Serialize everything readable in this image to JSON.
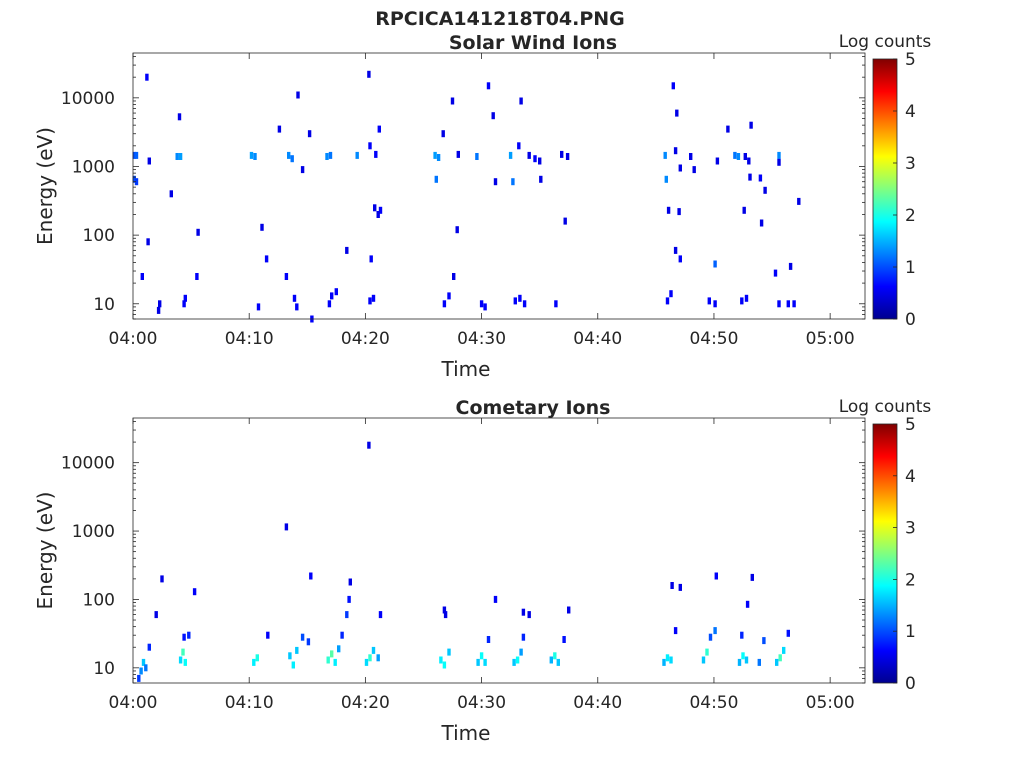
{
  "figure": {
    "title": "RPCICA141218T04.PNG"
  },
  "chart_data": [
    {
      "type": "heatmap",
      "title": "Solar Wind Ions",
      "xlabel": "Time",
      "ylabel": "Energy (eV)",
      "yscale": "log",
      "ylim": [
        6,
        45000
      ],
      "xlim": [
        "04:00",
        "05:03"
      ],
      "x_ticks": [
        "04:00",
        "04:10",
        "04:20",
        "04:30",
        "04:40",
        "04:50",
        "05:00"
      ],
      "y_ticks": [
        "10",
        "100",
        "1000",
        "10000"
      ],
      "colorbar": {
        "label": "Log counts",
        "range": [
          0,
          5
        ],
        "ticks": [
          "0",
          "1",
          "2",
          "3",
          "4",
          "5"
        ],
        "colormap": "jet"
      },
      "cells": [
        [
          0.1,
          1450,
          1.0
        ],
        [
          0.3,
          1450,
          1.1
        ],
        [
          0.1,
          650,
          1.0
        ],
        [
          0.3,
          600,
          0.9
        ],
        [
          1.2,
          20000,
          0.6
        ],
        [
          1.4,
          1200,
          0.5
        ],
        [
          0.8,
          25,
          0.6
        ],
        [
          1.3,
          80,
          0.5
        ],
        [
          2.2,
          8,
          0.5
        ],
        [
          2.3,
          10,
          0.5
        ],
        [
          3.8,
          1400,
          1.3
        ],
        [
          4.1,
          1400,
          1.4
        ],
        [
          4.0,
          5300,
          0.5
        ],
        [
          3.3,
          400,
          0.5
        ],
        [
          4.4,
          10,
          0.6
        ],
        [
          4.5,
          12,
          0.6
        ],
        [
          5.6,
          110,
          0.5
        ],
        [
          5.5,
          25,
          0.6
        ],
        [
          10.2,
          1450,
          1.4
        ],
        [
          10.5,
          1400,
          1.3
        ],
        [
          11.1,
          130,
          0.5
        ],
        [
          11.5,
          45,
          0.6
        ],
        [
          10.8,
          9,
          0.6
        ],
        [
          12.6,
          3500,
          0.5
        ],
        [
          13.4,
          1450,
          1.3
        ],
        [
          13.7,
          1300,
          1.2
        ],
        [
          14.2,
          11000,
          0.5
        ],
        [
          13.2,
          25,
          0.6
        ],
        [
          13.9,
          12,
          0.6
        ],
        [
          14.1,
          9,
          0.6
        ],
        [
          15.2,
          3000,
          0.5
        ],
        [
          14.6,
          900,
          0.5
        ],
        [
          15.4,
          6,
          0.6
        ],
        [
          16.7,
          1400,
          1.3
        ],
        [
          17.0,
          1450,
          1.2
        ],
        [
          16.9,
          10,
          0.6
        ],
        [
          17.1,
          13,
          0.6
        ],
        [
          17.5,
          15,
          0.6
        ],
        [
          18.4,
          60,
          0.5
        ],
        [
          19.3,
          1450,
          1.3
        ],
        [
          20.3,
          22000,
          0.5
        ],
        [
          20.4,
          2000,
          0.6
        ],
        [
          20.4,
          11,
          0.6
        ],
        [
          20.7,
          12,
          0.6
        ],
        [
          21.2,
          3500,
          0.6
        ],
        [
          20.9,
          1500,
          0.6
        ],
        [
          21.3,
          230,
          0.6
        ],
        [
          20.8,
          250,
          0.5
        ],
        [
          21.1,
          200,
          0.5
        ],
        [
          20.5,
          45,
          0.6
        ],
        [
          26.0,
          1450,
          1.4
        ],
        [
          26.3,
          1350,
          1.3
        ],
        [
          26.1,
          650,
          1.2
        ],
        [
          26.8,
          10,
          0.6
        ],
        [
          27.2,
          13,
          0.6
        ],
        [
          27.6,
          25,
          0.5
        ],
        [
          26.7,
          3000,
          0.5
        ],
        [
          27.5,
          9000,
          0.5
        ],
        [
          28.0,
          1500,
          0.5
        ],
        [
          27.9,
          120,
          0.5
        ],
        [
          29.6,
          1400,
          1.2
        ],
        [
          30.0,
          10,
          0.6
        ],
        [
          30.3,
          9,
          0.6
        ],
        [
          30.6,
          15000,
          0.6
        ],
        [
          31.0,
          5500,
          0.5
        ],
        [
          31.2,
          600,
          0.5
        ],
        [
          32.5,
          1450,
          1.4
        ],
        [
          32.7,
          600,
          1.2
        ],
        [
          32.9,
          11,
          0.6
        ],
        [
          33.3,
          12,
          0.6
        ],
        [
          33.7,
          10,
          0.6
        ],
        [
          33.2,
          2000,
          0.6
        ],
        [
          33.4,
          9000,
          0.5
        ],
        [
          34.1,
          1450,
          0.5
        ],
        [
          34.6,
          1300,
          0.6
        ],
        [
          35.0,
          1200,
          0.5
        ],
        [
          35.1,
          650,
          0.5
        ],
        [
          36.4,
          10,
          0.6
        ],
        [
          36.9,
          1500,
          0.5
        ],
        [
          37.4,
          1400,
          0.5
        ],
        [
          37.2,
          160,
          0.5
        ],
        [
          45.8,
          1450,
          1.3
        ],
        [
          45.9,
          650,
          1.3
        ],
        [
          46.0,
          11,
          0.6
        ],
        [
          46.3,
          14,
          0.6
        ],
        [
          46.5,
          15000,
          0.6
        ],
        [
          46.8,
          6000,
          0.5
        ],
        [
          46.7,
          1700,
          0.5
        ],
        [
          47.1,
          950,
          0.5
        ],
        [
          47.0,
          220,
          0.5
        ],
        [
          46.7,
          60,
          0.5
        ],
        [
          47.1,
          45,
          0.6
        ],
        [
          46.1,
          230,
          0.5
        ],
        [
          48.0,
          1400,
          0.5
        ],
        [
          48.3,
          900,
          0.5
        ],
        [
          49.6,
          11,
          0.6
        ],
        [
          50.1,
          10,
          0.6
        ],
        [
          50.1,
          38,
          1.1
        ],
        [
          50.3,
          1200,
          0.5
        ],
        [
          51.8,
          1450,
          1.2
        ],
        [
          52.1,
          1400,
          1.3
        ],
        [
          52.4,
          11,
          0.6
        ],
        [
          52.8,
          12,
          0.6
        ],
        [
          53.0,
          1200,
          0.5
        ],
        [
          53.1,
          700,
          0.5
        ],
        [
          52.6,
          230,
          0.5
        ],
        [
          52.7,
          1400,
          0.5
        ],
        [
          54.0,
          680,
          0.6
        ],
        [
          54.4,
          450,
          0.5
        ],
        [
          54.1,
          150,
          0.5
        ],
        [
          55.6,
          1450,
          1.3
        ],
        [
          55.6,
          10,
          0.6
        ],
        [
          55.3,
          28,
          0.6
        ],
        [
          56.4,
          10,
          0.6
        ],
        [
          56.9,
          10,
          0.6
        ],
        [
          56.6,
          35,
          0.5
        ],
        [
          55.6,
          1150,
          0.5
        ],
        [
          57.3,
          310,
          0.5
        ],
        [
          53.2,
          4000,
          0.5
        ],
        [
          51.2,
          3500,
          0.5
        ]
      ]
    },
    {
      "type": "heatmap",
      "title": "Cometary Ions",
      "xlabel": "Time",
      "ylabel": "Energy (eV)",
      "yscale": "log",
      "ylim": [
        6,
        45000
      ],
      "xlim": [
        "04:00",
        "05:03"
      ],
      "x_ticks": [
        "04:00",
        "04:10",
        "04:20",
        "04:30",
        "04:40",
        "04:50",
        "05:00"
      ],
      "y_ticks": [
        "10",
        "100",
        "1000",
        "10000"
      ],
      "colorbar": {
        "label": "Log counts",
        "range": [
          0,
          5
        ],
        "ticks": [
          "0",
          "1",
          "2",
          "3",
          "4",
          "5"
        ],
        "colormap": "jet"
      },
      "cells": [
        [
          0.7,
          9,
          1.3
        ],
        [
          0.9,
          12,
          1.6
        ],
        [
          1.1,
          10,
          1.2
        ],
        [
          1.4,
          20,
          0.8
        ],
        [
          0.5,
          7,
          0.9
        ],
        [
          2.0,
          60,
          0.5
        ],
        [
          2.5,
          200,
          0.5
        ],
        [
          4.1,
          13,
          1.7
        ],
        [
          4.3,
          17,
          2.2
        ],
        [
          4.5,
          12,
          1.9
        ],
        [
          4.8,
          30,
          0.8
        ],
        [
          4.4,
          28,
          0.7
        ],
        [
          5.3,
          130,
          0.6
        ],
        [
          10.4,
          12,
          1.8
        ],
        [
          10.7,
          14,
          2.0
        ],
        [
          11.6,
          30,
          0.6
        ],
        [
          13.2,
          1150,
          0.5
        ],
        [
          13.5,
          15,
          1.6
        ],
        [
          13.8,
          11,
          1.8
        ],
        [
          14.1,
          18,
          1.6
        ],
        [
          14.6,
          28,
          1.0
        ],
        [
          15.1,
          24,
          0.9
        ],
        [
          15.3,
          220,
          0.6
        ],
        [
          16.8,
          13,
          2.1
        ],
        [
          17.1,
          16,
          2.3
        ],
        [
          17.4,
          12,
          1.8
        ],
        [
          17.7,
          19,
          1.4
        ],
        [
          18.0,
          30,
          0.8
        ],
        [
          18.4,
          60,
          0.9
        ],
        [
          18.6,
          100,
          0.7
        ],
        [
          18.7,
          180,
          0.5
        ],
        [
          20.1,
          12,
          1.7
        ],
        [
          20.4,
          14,
          2.1
        ],
        [
          20.7,
          18,
          1.6
        ],
        [
          21.1,
          14,
          1.4
        ],
        [
          21.3,
          60,
          0.6
        ],
        [
          20.3,
          18000,
          0.5
        ],
        [
          26.5,
          13,
          1.8
        ],
        [
          26.8,
          11,
          1.9
        ],
        [
          27.2,
          17,
          1.6
        ],
        [
          26.9,
          60,
          0.5
        ],
        [
          26.8,
          70,
          0.5
        ],
        [
          29.7,
          12,
          1.6
        ],
        [
          30.0,
          15,
          1.9
        ],
        [
          30.3,
          12,
          1.7
        ],
        [
          30.6,
          26,
          0.8
        ],
        [
          31.2,
          100,
          0.6
        ],
        [
          32.8,
          12,
          1.6
        ],
        [
          33.1,
          13,
          1.9
        ],
        [
          33.4,
          17,
          1.4
        ],
        [
          33.6,
          28,
          0.8
        ],
        [
          33.6,
          65,
          0.5
        ],
        [
          34.1,
          60,
          0.5
        ],
        [
          36.0,
          13,
          1.5
        ],
        [
          36.3,
          15,
          2.0
        ],
        [
          36.6,
          12,
          1.6
        ],
        [
          37.1,
          26,
          0.7
        ],
        [
          37.5,
          70,
          0.5
        ],
        [
          45.7,
          12,
          1.5
        ],
        [
          46.0,
          14,
          1.8
        ],
        [
          46.3,
          13,
          1.7
        ],
        [
          46.7,
          35,
          0.6
        ],
        [
          46.4,
          160,
          0.5
        ],
        [
          47.1,
          150,
          0.5
        ],
        [
          49.1,
          13,
          1.6
        ],
        [
          49.4,
          17,
          2.1
        ],
        [
          49.7,
          28,
          1.0
        ],
        [
          50.1,
          35,
          1.2
        ],
        [
          50.2,
          220,
          0.6
        ],
        [
          52.2,
          12,
          1.5
        ],
        [
          52.5,
          15,
          1.9
        ],
        [
          52.8,
          13,
          1.6
        ],
        [
          52.4,
          30,
          0.8
        ],
        [
          52.9,
          85,
          0.6
        ],
        [
          53.3,
          210,
          0.5
        ],
        [
          55.4,
          12,
          1.6
        ],
        [
          55.7,
          14,
          2.2
        ],
        [
          56.0,
          18,
          1.7
        ],
        [
          56.4,
          32,
          0.7
        ],
        [
          54.3,
          25,
          1.0
        ],
        [
          53.9,
          12,
          1.2
        ]
      ]
    }
  ]
}
